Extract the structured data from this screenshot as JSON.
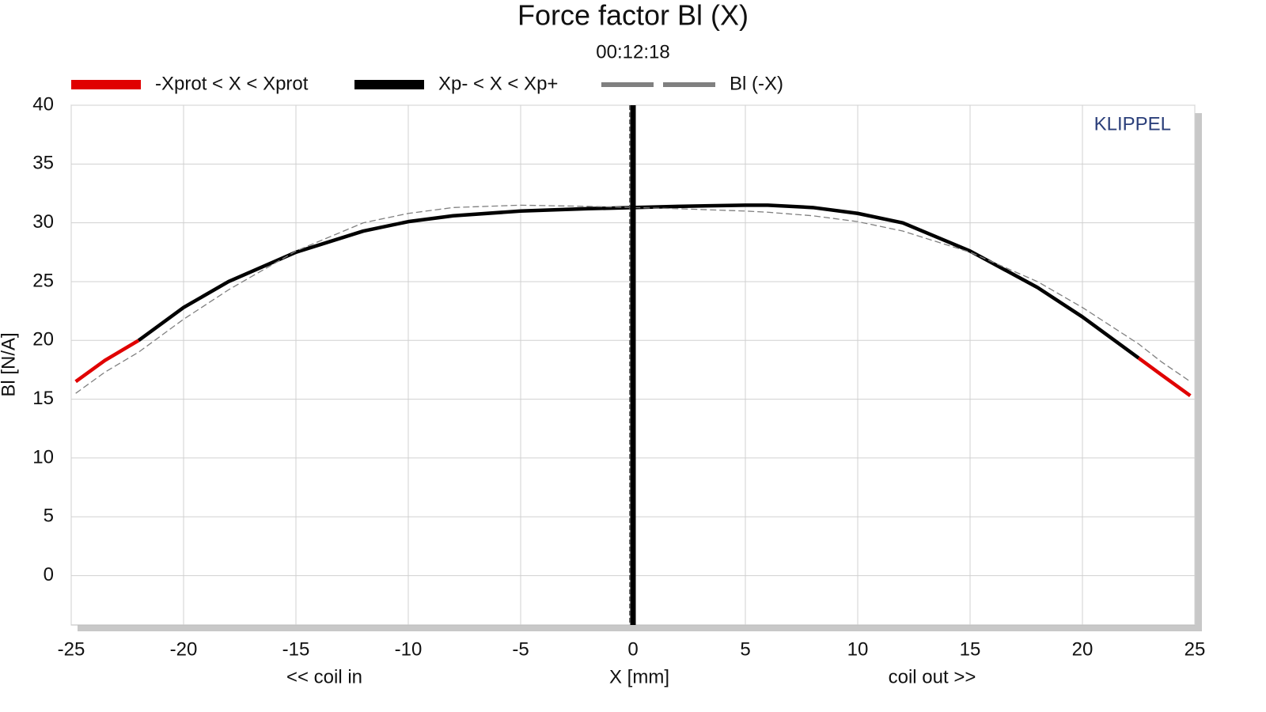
{
  "chart_data": {
    "type": "line",
    "title": "Force factor Bl (X)",
    "subtitle": "00:12:18",
    "x_label": "X [mm]",
    "y_label": "Bl [N/A]",
    "annotations": [
      "<< coil in",
      "coil out >>",
      "KLIPPEL"
    ],
    "x": [
      -24.8,
      -23.5,
      -22,
      -20,
      -18,
      -15,
      -12,
      -10,
      -8,
      -5,
      -2,
      0,
      2,
      5,
      6,
      8,
      10,
      12,
      15,
      18,
      20,
      22.5,
      23.5,
      24.8
    ],
    "series": [
      {
        "name": "-Xprot < X < Xprot",
        "color": "#e00000",
        "line_style": "solid",
        "values": [
          16.5,
          18.3,
          20,
          null,
          null,
          null,
          null,
          null,
          null,
          null,
          null,
          null,
          null,
          null,
          null,
          null,
          null,
          null,
          null,
          null,
          null,
          18.5,
          17.1,
          15.3
        ]
      },
      {
        "name": "Xp- < X < Xp+",
        "color": "#000000",
        "line_style": "solid",
        "values": [
          null,
          null,
          20,
          22.8,
          25,
          27.5,
          29.3,
          30.1,
          30.6,
          31.0,
          31.2,
          31.3,
          31.4,
          31.5,
          31.5,
          31.3,
          30.8,
          30.0,
          27.6,
          24.5,
          22,
          18.5,
          null,
          null
        ]
      },
      {
        "name": "Bl (-X)",
        "color": "#808080",
        "line_style": "dashed",
        "values": [
          15.5,
          17.3,
          19.0,
          21.8,
          24.3,
          27.6,
          30.0,
          30.8,
          31.3,
          31.5,
          31.4,
          31.3,
          31.2,
          31.0,
          30.9,
          30.6,
          30.1,
          29.3,
          27.5,
          25.0,
          22.8,
          19.7,
          18.2,
          16.5
        ]
      }
    ],
    "vertical_lines": [
      {
        "x": 0,
        "line_style": "solid",
        "color": "#000000"
      },
      {
        "x": -0.15,
        "line_style": "dashed",
        "color": "#555555"
      }
    ],
    "xlim": [
      -25,
      25
    ],
    "xticks": [
      -25,
      -20,
      -15,
      -10,
      -5,
      0,
      5,
      10,
      15,
      20,
      25
    ],
    "ylim": [
      -4.2,
      40
    ],
    "yticks": [
      0,
      5,
      10,
      15,
      20,
      25,
      30,
      35,
      40
    ],
    "grid": true
  }
}
